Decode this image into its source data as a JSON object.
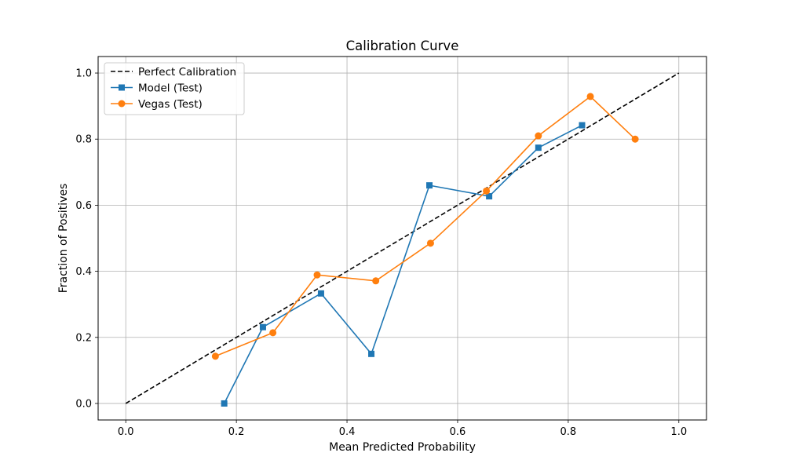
{
  "chart_data": {
    "type": "line",
    "title": "Calibration Curve",
    "xlabel": "Mean Predicted Probability",
    "ylabel": "Fraction of Positives",
    "xlim": [
      -0.05,
      1.05
    ],
    "ylim": [
      -0.05,
      1.05
    ],
    "xticks": [
      0.0,
      0.2,
      0.4,
      0.6,
      0.8,
      1.0
    ],
    "yticks": [
      0.0,
      0.2,
      0.4,
      0.6,
      0.8,
      1.0
    ],
    "xtick_labels": [
      "0.0",
      "0.2",
      "0.4",
      "0.6",
      "0.8",
      "1.0"
    ],
    "ytick_labels": [
      "0.0",
      "0.2",
      "0.4",
      "0.6",
      "0.8",
      "1.0"
    ],
    "grid": true,
    "legend_position": "top-left",
    "series": [
      {
        "name": "Perfect Calibration",
        "style": "dashed",
        "marker": "none",
        "color": "#000000",
        "x": [
          0.0,
          1.0
        ],
        "y": [
          0.0,
          1.0
        ]
      },
      {
        "name": "Model (Test)",
        "style": "solid",
        "marker": "square",
        "color": "#1f77b4",
        "x": [
          0.178,
          0.248,
          0.353,
          0.444,
          0.549,
          0.657,
          0.746,
          0.825
        ],
        "y": [
          0.0,
          0.231,
          0.333,
          0.15,
          0.66,
          0.627,
          0.774,
          0.842
        ]
      },
      {
        "name": "Vegas (Test)",
        "style": "solid",
        "marker": "circle",
        "color": "#ff7f0e",
        "x": [
          0.162,
          0.266,
          0.346,
          0.452,
          0.551,
          0.652,
          0.746,
          0.84,
          0.921
        ],
        "y": [
          0.143,
          0.214,
          0.389,
          0.371,
          0.485,
          0.643,
          0.81,
          0.929,
          0.8
        ]
      }
    ]
  }
}
